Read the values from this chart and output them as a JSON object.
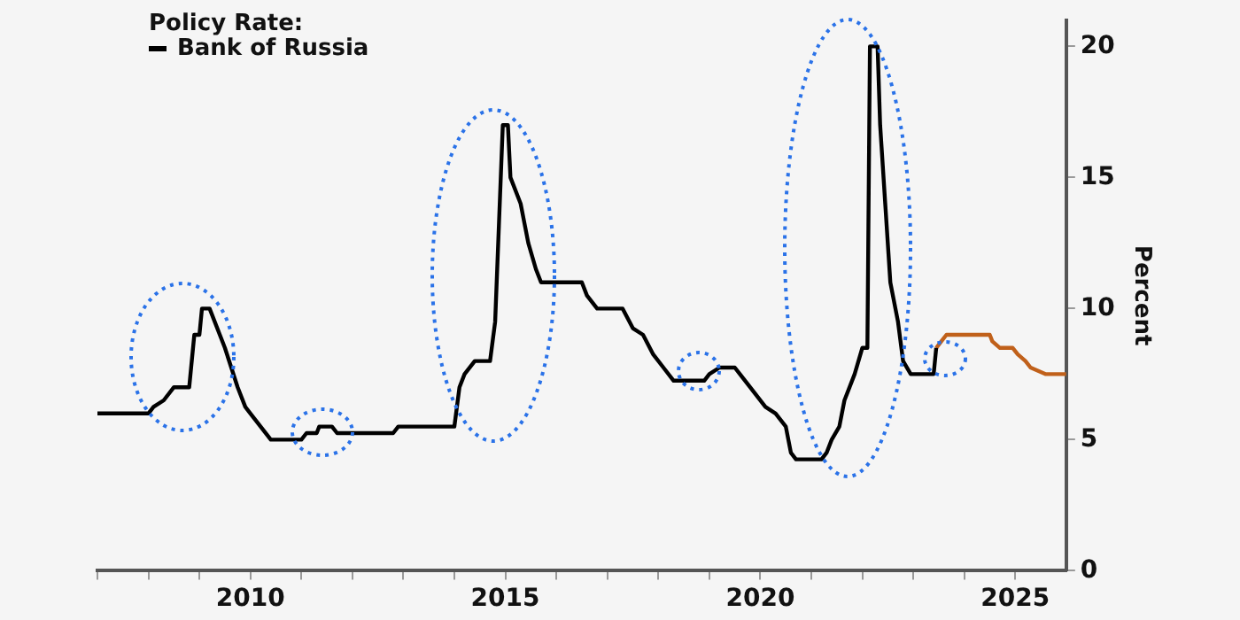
{
  "chart_data": {
    "type": "line",
    "legend_title": "Policy Rate:",
    "ylabel": "Percent",
    "legend": "top left",
    "grid": false,
    "marker": "none",
    "line_style": "solid",
    "xlim": [
      2007,
      2026
    ],
    "ylim": [
      0,
      21
    ],
    "xticks": [
      {
        "value": 2007,
        "label": null
      },
      {
        "value": 2008,
        "label": null
      },
      {
        "value": 2009,
        "label": null
      },
      2010,
      {
        "value": 2011,
        "label": null
      },
      {
        "value": 2012,
        "label": null
      },
      {
        "value": 2013,
        "label": null
      },
      {
        "value": 2014,
        "label": null
      },
      2015,
      {
        "value": 2016,
        "label": null
      },
      {
        "value": 2017,
        "label": null
      },
      {
        "value": 2018,
        "label": null
      },
      {
        "value": 2019,
        "label": null
      },
      2020,
      {
        "value": 2021,
        "label": null
      },
      {
        "value": 2022,
        "label": null
      },
      {
        "value": 2023,
        "label": null
      },
      {
        "value": 2024,
        "label": null
      },
      2025
    ],
    "yticks": [
      0,
      5,
      10,
      15,
      20
    ],
    "series": [
      {
        "name": "Bank of Russia",
        "color": "#000000",
        "x": [
          2007,
          2008,
          2008.1,
          2008.3,
          2008.5,
          2008.8,
          2008.9,
          2009.0,
          2009.05,
          2009.2,
          2009.5,
          2009.75,
          2009.9,
          2010.0,
          2010.2,
          2010.4,
          2011.0,
          2011.1,
          2011.3,
          2011.35,
          2011.6,
          2011.7,
          2012.8,
          2012.9,
          2014.0,
          2014.1,
          2014.2,
          2014.4,
          2014.7,
          2014.8,
          2014.95,
          2015.05,
          2015.1,
          2015.3,
          2015.45,
          2015.6,
          2015.7,
          2016.5,
          2016.6,
          2016.8,
          2017.3,
          2017.5,
          2017.7,
          2017.9,
          2018.1,
          2018.3,
          2018.9,
          2019.0,
          2019.2,
          2019.5,
          2019.6,
          2019.8,
          2020.1,
          2020.3,
          2020.5,
          2020.6,
          2020.7,
          2021.2,
          2021.3,
          2021.4,
          2021.55,
          2021.65,
          2021.85,
          2022.0,
          2022.1,
          2022.15,
          2022.3,
          2022.35,
          2022.45,
          2022.55,
          2022.7,
          2022.8,
          2022.95,
          2023.4,
          2023.45
        ],
        "values": [
          6,
          6,
          6.25,
          6.5,
          7,
          7,
          9,
          9,
          10,
          10,
          8.5,
          7,
          6.25,
          6,
          5.5,
          5,
          5,
          5.25,
          5.25,
          5.5,
          5.5,
          5.25,
          5.25,
          5.5,
          5.5,
          7,
          7.5,
          8,
          8,
          9.5,
          17,
          17,
          15,
          14,
          12.5,
          11.5,
          11,
          11,
          10.5,
          10,
          10,
          9.25,
          9,
          8.25,
          7.75,
          7.25,
          7.25,
          7.5,
          7.75,
          7.75,
          7.5,
          7,
          6.25,
          6,
          5.5,
          4.5,
          4.25,
          4.25,
          4.5,
          5,
          5.5,
          6.5,
          7.5,
          8.5,
          8.5,
          20,
          20,
          17,
          14,
          11,
          9.5,
          8,
          7.5,
          7.5,
          8.5
        ]
      },
      {
        "color": "#c0601a",
        "x": [
          2023.45,
          2023.55,
          2023.65,
          2024.1,
          2024.5,
          2024.55,
          2024.7,
          2024.95,
          2025.05,
          2025.2,
          2025.3,
          2025.6,
          2026.0
        ],
        "values": [
          8.5,
          8.75,
          9,
          9,
          9,
          8.75,
          8.5,
          8.5,
          8.25,
          8,
          7.75,
          7.5,
          7.5
        ]
      }
    ]
  }
}
